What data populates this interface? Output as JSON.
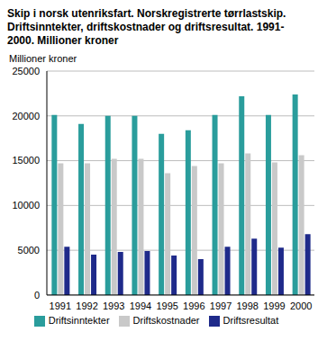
{
  "chart_data": {
    "type": "bar",
    "title": "Skip i norsk utenriksfart. Norskregistrerte tørrlastskip. Driftsinntekter, driftskostnader og driftsresultat. 1991-2000. Millioner kroner",
    "y_label": "Millioner kroner",
    "categories": [
      "1991",
      "1992",
      "1993",
      "1994",
      "1995",
      "1996",
      "1997",
      "1998",
      "1999",
      "2000"
    ],
    "series": [
      {
        "name": "Driftsinntekter",
        "color": "#2a9d9c",
        "values": [
          20100,
          19100,
          20000,
          20000,
          18000,
          18400,
          20100,
          22200,
          20100,
          22400
        ]
      },
      {
        "name": "Driftskostnader",
        "color": "#c9c9c9",
        "values": [
          14700,
          14700,
          15200,
          15200,
          13600,
          14400,
          14700,
          15800,
          14800,
          15600
        ]
      },
      {
        "name": "Driftsresultat",
        "color": "#1f2a8a",
        "values": [
          5400,
          4500,
          4800,
          4900,
          4400,
          4000,
          5400,
          6300,
          5300,
          6800
        ]
      }
    ],
    "ylim": [
      0,
      25000
    ],
    "yticks": [
      0,
      5000,
      10000,
      15000,
      20000,
      25000
    ],
    "grid": true,
    "legend": "bottom"
  }
}
